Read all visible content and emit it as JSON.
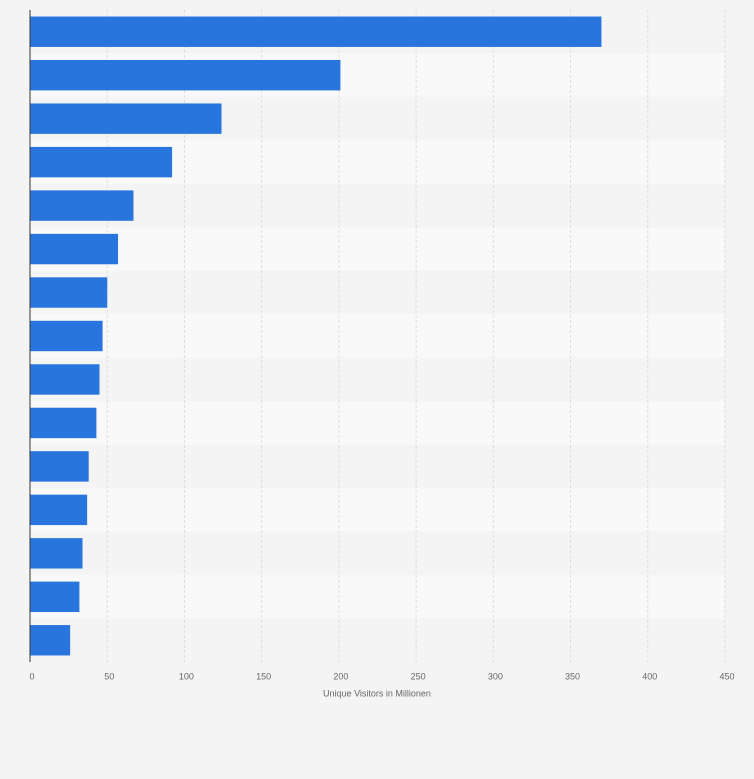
{
  "chart_data": {
    "type": "bar",
    "orientation": "horizontal",
    "categories": [
      null,
      null,
      null,
      null,
      null,
      null,
      null,
      null,
      null,
      null,
      null,
      null,
      null,
      null,
      null
    ],
    "values": [
      370,
      201,
      124,
      92,
      67,
      57,
      50,
      47,
      45,
      43,
      38,
      37,
      34,
      32,
      26
    ],
    "color": "#2876dd",
    "xlabel": "Unique Visitors in Millionen",
    "xlim": [
      0,
      450
    ],
    "xticks": [
      0,
      50,
      100,
      150,
      200,
      250,
      300,
      350,
      400,
      450
    ],
    "grid": true
  }
}
